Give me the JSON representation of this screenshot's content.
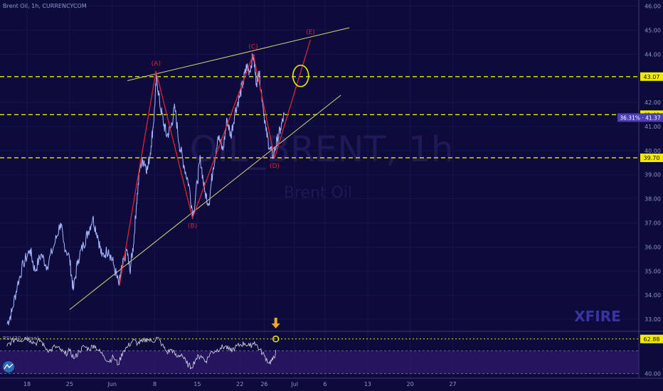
{
  "header": {
    "symbol_title": "Brent Oil, 1h, CURRENCYCOM"
  },
  "watermark": {
    "ticker": "OIL_BRENT, 1h",
    "name": "Brent Oil",
    "brand": "XFIRE"
  },
  "colors": {
    "background": "#0d0b3c",
    "price_line": "#a9b7ff",
    "wave_line": "#e0222e",
    "trend_line": "#d7d27a",
    "level_line": "#f2ea00",
    "rsi_line": "#d9d9e6",
    "rsi_band": "#3b1d7a",
    "arrow": "#f5a623"
  },
  "chart_data": {
    "type": "line",
    "title": "Brent Oil, 1h, CURRENCYCOM",
    "x_ticks": [
      {
        "label": "18",
        "day": 0
      },
      {
        "label": "25",
        "day": 7
      },
      {
        "label": "Jun",
        "day": 14
      },
      {
        "label": "8",
        "day": 21
      },
      {
        "label": "15",
        "day": 28
      },
      {
        "label": "22",
        "day": 35
      },
      {
        "label": "26",
        "day": 39
      },
      {
        "label": "Jul",
        "day": 44
      },
      {
        "label": "6",
        "day": 49
      },
      {
        "label": "13",
        "day": 56
      },
      {
        "label": "20",
        "day": 63
      },
      {
        "label": "27",
        "day": 70
      }
    ],
    "ylim": [
      32.5,
      46.25
    ],
    "y_ticks": [
      33,
      34,
      35,
      36,
      37,
      38,
      39,
      40,
      41,
      42,
      43,
      44,
      45,
      46
    ],
    "price_series": {
      "name": "Brent Oil",
      "points": [
        [
          -3.3,
          32.8
        ],
        [
          -2.5,
          33.3
        ],
        [
          -1.6,
          34.4
        ],
        [
          -0.6,
          35.3
        ],
        [
          0.5,
          35.9
        ],
        [
          1.3,
          35.0
        ],
        [
          2.3,
          35.7
        ],
        [
          3.3,
          35.2
        ],
        [
          4.5,
          36.1
        ],
        [
          5.5,
          37.0
        ],
        [
          6.0,
          36.2
        ],
        [
          7.0,
          35.5
        ],
        [
          7.6,
          34.2
        ],
        [
          8.4,
          35.5
        ],
        [
          9.3,
          36.1
        ],
        [
          10.0,
          36.6
        ],
        [
          10.8,
          37.2
        ],
        [
          11.6,
          36.5
        ],
        [
          12.3,
          35.6
        ],
        [
          13.4,
          35.9
        ],
        [
          14.2,
          35.3
        ],
        [
          15.1,
          34.4
        ],
        [
          15.6,
          35.1
        ],
        [
          16.4,
          35.9
        ],
        [
          16.9,
          35.0
        ],
        [
          17.5,
          36.1
        ],
        [
          18.0,
          37.8
        ],
        [
          18.6,
          39.4
        ],
        [
          19.2,
          39.6
        ],
        [
          19.8,
          39.2
        ],
        [
          20.4,
          40.2
        ],
        [
          20.9,
          41.5
        ],
        [
          21.3,
          43.1
        ],
        [
          21.8,
          42.0
        ],
        [
          22.4,
          41.2
        ],
        [
          23.0,
          40.6
        ],
        [
          23.7,
          41.0
        ],
        [
          24.3,
          41.8
        ],
        [
          25.0,
          40.3
        ],
        [
          25.8,
          39.4
        ],
        [
          26.6,
          38.6
        ],
        [
          27.3,
          37.3
        ],
        [
          28.0,
          38.7
        ],
        [
          28.5,
          39.7
        ],
        [
          29.2,
          38.3
        ],
        [
          29.9,
          37.8
        ],
        [
          30.6,
          39.3
        ],
        [
          31.4,
          40.6
        ],
        [
          32.2,
          40.0
        ],
        [
          32.9,
          41.3
        ],
        [
          33.5,
          40.6
        ],
        [
          34.2,
          41.6
        ],
        [
          34.9,
          42.2
        ],
        [
          35.5,
          42.8
        ],
        [
          36.1,
          43.5
        ],
        [
          36.6,
          43.3
        ],
        [
          37.2,
          44.0
        ],
        [
          37.7,
          42.8
        ],
        [
          38.1,
          43.3
        ],
        [
          38.7,
          42.1
        ],
        [
          39.3,
          40.8
        ],
        [
          39.9,
          40.1
        ],
        [
          40.5,
          39.8
        ],
        [
          41.1,
          40.4
        ],
        [
          41.7,
          40.9
        ],
        [
          42.3,
          41.5
        ]
      ]
    },
    "wave_series": {
      "name": "Wave count",
      "points": [
        {
          "day": 15.2,
          "price": 34.4,
          "label": ""
        },
        {
          "day": 21.2,
          "price": 43.3,
          "label": "(A)"
        },
        {
          "day": 27.2,
          "price": 37.2,
          "label": "(B)"
        },
        {
          "day": 37.2,
          "price": 44.0,
          "label": "(C)"
        },
        {
          "day": 40.7,
          "price": 39.7,
          "label": "(D)"
        },
        {
          "day": 46.6,
          "price": 44.6,
          "label": "(E)"
        }
      ]
    },
    "trend_lines": [
      {
        "name": "upper",
        "from": [
          16.5,
          42.9
        ],
        "to": [
          53.0,
          45.1
        ]
      },
      {
        "name": "lower",
        "from": [
          7.0,
          33.4
        ],
        "to": [
          51.6,
          42.3
        ]
      }
    ],
    "levels": [
      {
        "value": 43.07,
        "label": "43.07"
      },
      {
        "value": 41.49,
        "label": "41.49"
      },
      {
        "value": 39.7,
        "label": "39.70"
      }
    ],
    "current_badge": {
      "percent": "36.31%",
      "value": "41.37",
      "price": 41.37
    },
    "target_circle": {
      "day": 45.0,
      "price": 43.1
    },
    "rsi": {
      "label": "RSI (30, close)",
      "ylim": [
        37.0,
        67.0
      ],
      "value": 62.88,
      "value_label": "62.88",
      "level_label": "40.00",
      "band": [
        40.0,
        55.0
      ],
      "circle_day": 40.9,
      "arrow_day": 40.9,
      "points": [
        [
          -3.3,
          58
        ],
        [
          -2.6,
          61
        ],
        [
          -1.8,
          63
        ],
        [
          -1.0,
          62
        ],
        [
          -0.2,
          64
        ],
        [
          0.6,
          62
        ],
        [
          1.4,
          60
        ],
        [
          2.2,
          62
        ],
        [
          3.0,
          57
        ],
        [
          3.8,
          55
        ],
        [
          4.6,
          58
        ],
        [
          5.4,
          56
        ],
        [
          6.2,
          53
        ],
        [
          7.0,
          55
        ],
        [
          7.8,
          50
        ],
        [
          8.6,
          55
        ],
        [
          9.4,
          58
        ],
        [
          10.2,
          56
        ],
        [
          11.0,
          59
        ],
        [
          11.8,
          55
        ],
        [
          12.6,
          52
        ],
        [
          13.4,
          48
        ],
        [
          14.2,
          51
        ],
        [
          15.0,
          46
        ],
        [
          15.8,
          55
        ],
        [
          16.6,
          58
        ],
        [
          17.4,
          62
        ],
        [
          18.2,
          60
        ],
        [
          19.0,
          61
        ],
        [
          19.8,
          63
        ],
        [
          20.6,
          61
        ],
        [
          21.4,
          64
        ],
        [
          22.2,
          59
        ],
        [
          23.0,
          54
        ],
        [
          23.8,
          56
        ],
        [
          24.6,
          51
        ],
        [
          25.4,
          53
        ],
        [
          26.2,
          47
        ],
        [
          27.0,
          44
        ],
        [
          27.8,
          50
        ],
        [
          28.6,
          52
        ],
        [
          29.4,
          48
        ],
        [
          30.2,
          54
        ],
        [
          31.0,
          55
        ],
        [
          31.8,
          57
        ],
        [
          32.6,
          58
        ],
        [
          33.4,
          55
        ],
        [
          34.2,
          57
        ],
        [
          35.0,
          59
        ],
        [
          35.8,
          60
        ],
        [
          36.6,
          58
        ],
        [
          37.4,
          61
        ],
        [
          38.2,
          56
        ],
        [
          39.0,
          52
        ],
        [
          39.8,
          47
        ],
        [
          40.4,
          49
        ],
        [
          41.0,
          55
        ]
      ]
    }
  }
}
